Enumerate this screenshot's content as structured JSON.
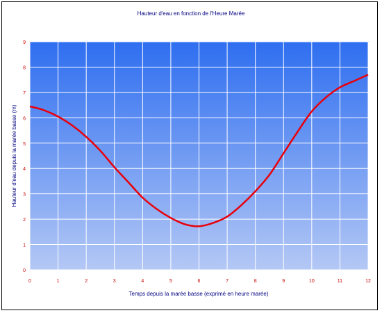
{
  "chart_data": {
    "type": "line",
    "title": "Hauteur d'eau en fonction de l'Heure Marée",
    "xlabel": "Temps depuis la marée basse (exprimé en heure marée)",
    "ylabel": "Hauteur d'eau depuis la marée basse (m)",
    "xlim": [
      0,
      12
    ],
    "ylim": [
      0,
      9
    ],
    "x_ticks": [
      "0",
      "1",
      "2",
      "3",
      "4",
      "5",
      "6",
      "7",
      "8",
      "9",
      "10",
      "11",
      "12"
    ],
    "y_ticks": [
      "0",
      "1",
      "2",
      "3",
      "4",
      "5",
      "6",
      "7",
      "8",
      "9"
    ],
    "grid": true,
    "legend": "none",
    "series": [
      {
        "color": "#e8000b",
        "x": [
          0,
          0.5,
          1,
          1.5,
          2,
          2.5,
          3,
          3.5,
          4,
          4.5,
          5,
          5.5,
          6,
          6.5,
          7,
          7.5,
          8,
          8.5,
          9,
          9.5,
          10,
          10.5,
          11,
          11.5,
          12
        ],
        "y": [
          6.45,
          6.3,
          6.05,
          5.7,
          5.25,
          4.7,
          4.05,
          3.45,
          2.85,
          2.4,
          2.05,
          1.8,
          1.72,
          1.85,
          2.1,
          2.55,
          3.1,
          3.75,
          4.6,
          5.45,
          6.25,
          6.8,
          7.2,
          7.45,
          7.7
        ]
      }
    ],
    "colors": {
      "plot_top": "#2e6ef0",
      "plot_bottom": "#b4c8f5",
      "grid": "#ffffff",
      "tick_labels": "#cc0000",
      "text": "#000080"
    }
  }
}
